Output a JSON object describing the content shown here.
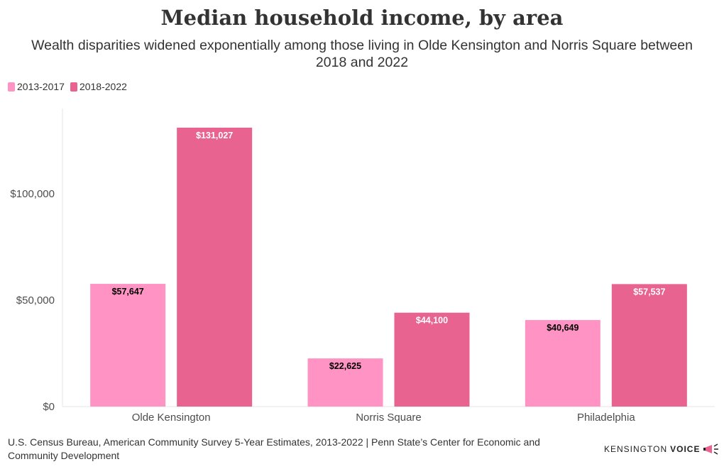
{
  "title": "Median household income, by area",
  "subtitle": "Wealth disparities widened exponentially among those living in Olde Kensington and Norris Square between 2018 and 2022",
  "footer": {
    "source": "U.S. Census Bureau, American Community Survey 5-Year Estimates, 2013-2022 | Penn State’s Center for Economic and Community Development",
    "brand_part1": "KENSINGTON",
    "brand_part2": "VOICE"
  },
  "chart_data": {
    "type": "bar",
    "categories": [
      "Olde Kensington",
      "Norris Square",
      "Philadelphia"
    ],
    "series": [
      {
        "name": "2013-2017",
        "values": [
          57647,
          22625,
          40649
        ],
        "labels": [
          "$57,647",
          "$22,625",
          "$40,649"
        ],
        "color": "#ff93c4",
        "label_color": "#000000"
      },
      {
        "name": "2018-2022",
        "values": [
          131027,
          44100,
          57537
        ],
        "labels": [
          "$131,027",
          "$44,100",
          "$57,537"
        ],
        "color": "#e8638f",
        "label_color": "#ffffff"
      }
    ],
    "y_ticks": [
      0,
      50000,
      100000
    ],
    "y_tick_labels": [
      "$0",
      "$50,000",
      "$100,000"
    ],
    "ylim": [
      0,
      140000
    ],
    "xlabel": "",
    "ylabel": "",
    "legend_position": "top-left",
    "grid": false
  }
}
